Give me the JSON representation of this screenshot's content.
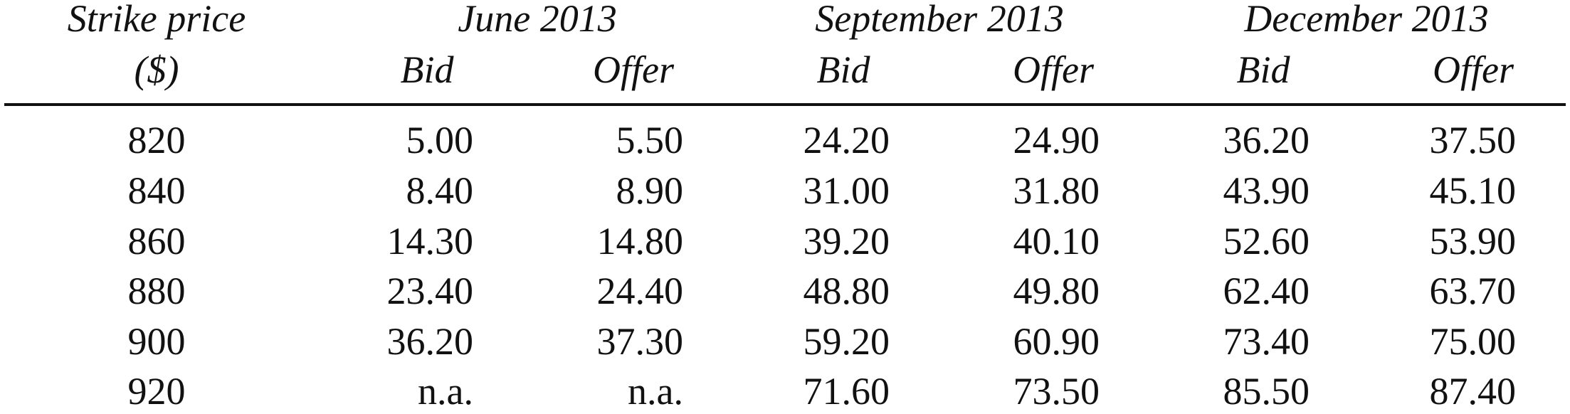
{
  "table": {
    "strike_header": [
      "Strike price",
      "($)"
    ],
    "groups": [
      {
        "label": "June 2013",
        "bid": "Bid",
        "offer": "Offer"
      },
      {
        "label": "September 2013",
        "bid": "Bid",
        "offer": "Offer"
      },
      {
        "label": "December 2013",
        "bid": "Bid",
        "offer": "Offer"
      }
    ],
    "rows": [
      {
        "strike": "820",
        "values": [
          "5.00",
          "5.50",
          "24.20",
          "24.90",
          "36.20",
          "37.50"
        ]
      },
      {
        "strike": "840",
        "values": [
          "8.40",
          "8.90",
          "31.00",
          "31.80",
          "43.90",
          "45.10"
        ]
      },
      {
        "strike": "860",
        "values": [
          "14.30",
          "14.80",
          "39.20",
          "40.10",
          "52.60",
          "53.90"
        ]
      },
      {
        "strike": "880",
        "values": [
          "23.40",
          "24.40",
          "48.80",
          "49.80",
          "62.40",
          "63.70"
        ]
      },
      {
        "strike": "900",
        "values": [
          "36.20",
          "37.30",
          "59.20",
          "60.90",
          "73.40",
          "75.00"
        ]
      },
      {
        "strike": "920",
        "values": [
          "n.a.",
          "n.a.",
          "71.60",
          "73.50",
          "85.50",
          "87.40"
        ]
      }
    ]
  }
}
